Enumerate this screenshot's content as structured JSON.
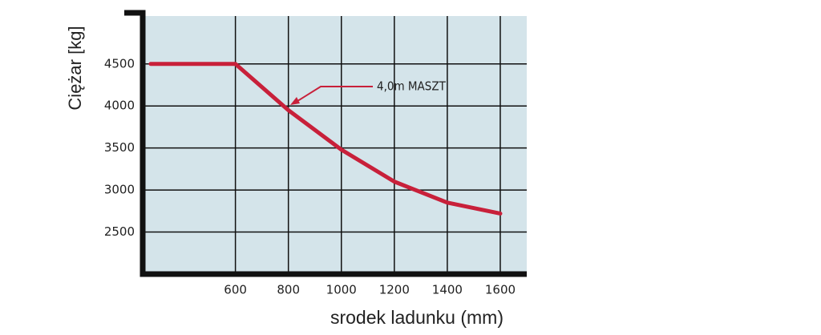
{
  "chart_data": {
    "type": "line",
    "ylabel": "Ciężar [kg]",
    "xlabel": "srodek ladunku (mm)",
    "x": [
      280,
      600,
      800,
      1000,
      1200,
      1400,
      1600
    ],
    "series": [
      {
        "name": "4,0m MASZT",
        "color": "#c8203a",
        "values": [
          4500,
          4500,
          3950,
          3480,
          3100,
          2850,
          2720
        ]
      }
    ],
    "xlim": [
      250,
      1700
    ],
    "xticks": [
      600,
      800,
      1000,
      1200,
      1400,
      1600
    ],
    "ylim": [
      2000,
      5070
    ],
    "yticks": [
      2500,
      3000,
      3500,
      4000,
      4500
    ],
    "grid": true
  }
}
